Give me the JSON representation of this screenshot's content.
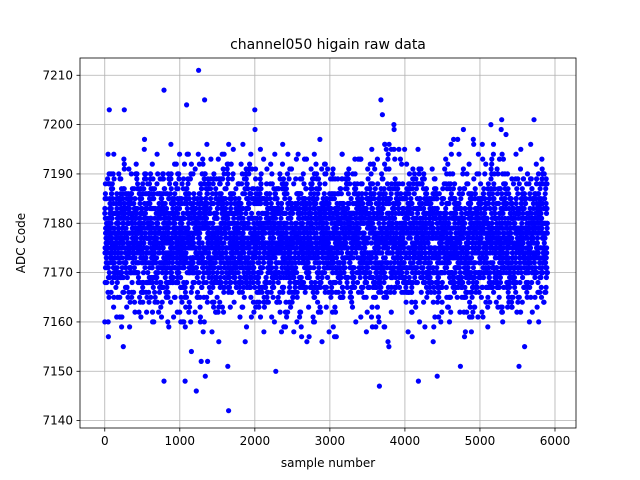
{
  "chart_data": {
    "type": "scatter",
    "title": "channel050 higain raw data",
    "xlabel": "sample number",
    "ylabel": "ADC Code",
    "xlim": [
      -330,
      6280
    ],
    "ylim": [
      7138.5,
      7213.5
    ],
    "xticks": [
      0,
      1000,
      2000,
      3000,
      4000,
      5000,
      6000
    ],
    "yticks": [
      7140,
      7150,
      7160,
      7170,
      7180,
      7190,
      7200,
      7210
    ],
    "xtick_labels": [
      "0",
      "1000",
      "2000",
      "3000",
      "4000",
      "5000",
      "6000"
    ],
    "ytick_labels": [
      "7140",
      "7150",
      "7160",
      "7170",
      "7180",
      "7190",
      "7200",
      "7210"
    ],
    "grid": true,
    "marker_color": "#0000ff",
    "n_samples": 5900,
    "center": 7177,
    "std_dev": 7,
    "outliers": [
      {
        "x": 1250,
        "y": 7211
      },
      {
        "x": 790,
        "y": 7207
      },
      {
        "x": 1330,
        "y": 7205
      },
      {
        "x": 1090,
        "y": 7204
      },
      {
        "x": 60,
        "y": 7203
      },
      {
        "x": 260,
        "y": 7203
      },
      {
        "x": 2000,
        "y": 7203
      },
      {
        "x": 3680,
        "y": 7205
      },
      {
        "x": 3700,
        "y": 7202
      },
      {
        "x": 4780,
        "y": 7199
      },
      {
        "x": 5290,
        "y": 7201
      },
      {
        "x": 5720,
        "y": 7201
      },
      {
        "x": 1650,
        "y": 7142
      },
      {
        "x": 3660,
        "y": 7147
      },
      {
        "x": 1220,
        "y": 7146
      },
      {
        "x": 790,
        "y": 7148
      },
      {
        "x": 1070,
        "y": 7148
      },
      {
        "x": 4180,
        "y": 7148
      },
      {
        "x": 4430,
        "y": 7149
      },
      {
        "x": 1340,
        "y": 7149
      },
      {
        "x": 2280,
        "y": 7150
      },
      {
        "x": 5520,
        "y": 7151
      },
      {
        "x": 1640,
        "y": 7151
      },
      {
        "x": 4740,
        "y": 7151
      },
      {
        "x": 1370,
        "y": 7152
      }
    ]
  }
}
